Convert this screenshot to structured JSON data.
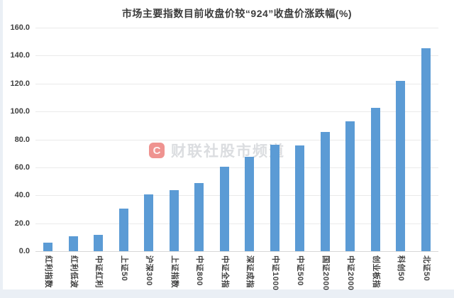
{
  "watermark": {
    "icon_letter": "C",
    "text": "财联社股市频道",
    "icon_color": "#E23A34",
    "text_color": "#BEC1C6"
  },
  "chart_data": {
    "type": "bar",
    "title": "市场主要指数目前收盘价较“924”收盘价涨跌幅(%)",
    "categories": [
      "红利指数",
      "红利低波",
      "中证红利",
      "上证50",
      "沪深300",
      "上证指数",
      "中证800",
      "中证全指",
      "深证成指",
      "中证1000",
      "中证500",
      "国证2000",
      "中证2000",
      "创业板指",
      "科创50",
      "北证50"
    ],
    "values": [
      5.9,
      10.7,
      11.5,
      30.4,
      40.5,
      43.5,
      49.0,
      60.2,
      67.5,
      76.2,
      75.6,
      85.5,
      93.0,
      102.8,
      122.0,
      145.4
    ],
    "xlabel": "",
    "ylabel": "",
    "ylim": [
      0,
      160
    ],
    "yticks": [
      0,
      20,
      40,
      60,
      80,
      100,
      120,
      140,
      160
    ],
    "ytick_labels": [
      "0.0",
      "20.0",
      "40.0",
      "60.0",
      "80.0",
      "100.0",
      "120.0",
      "140.0",
      "160.0"
    ],
    "grid": true,
    "legend": false,
    "bar_color": "#5B9BD5",
    "xlabel_rotation": "vertical-90cw"
  }
}
